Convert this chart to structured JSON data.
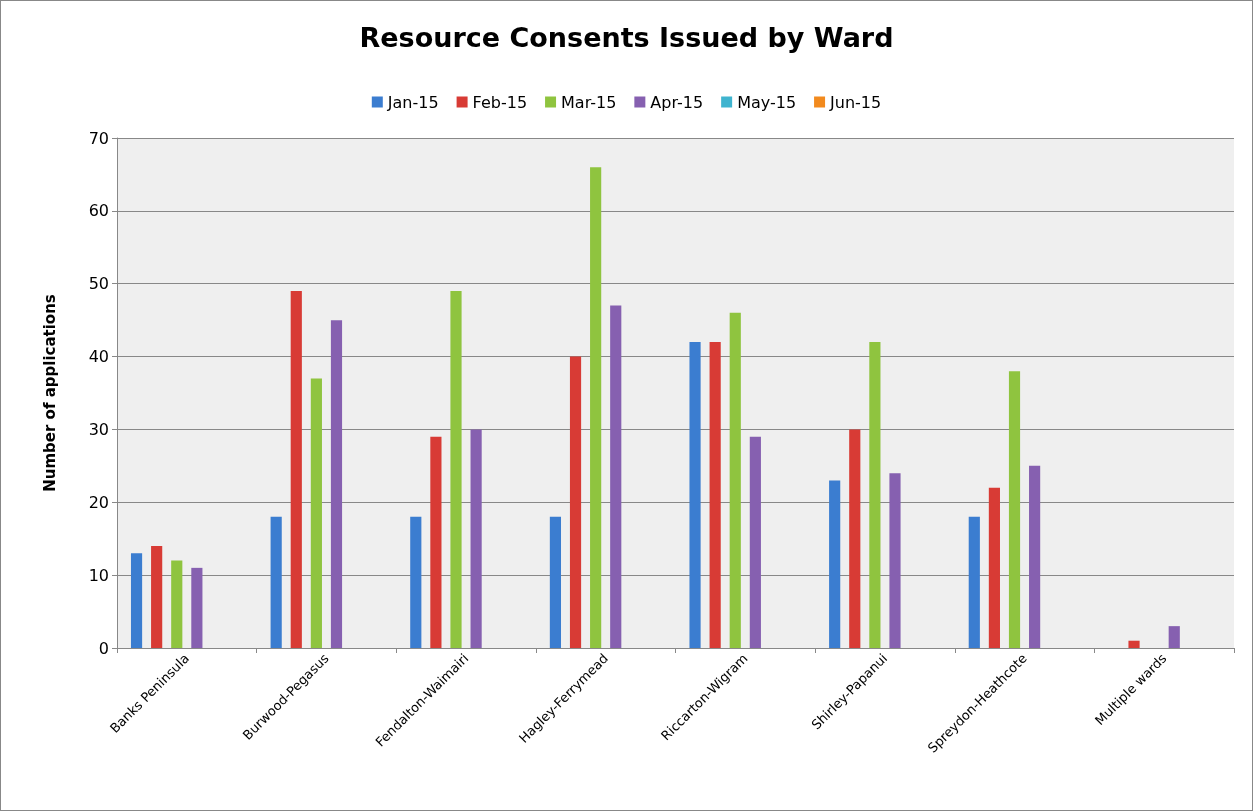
{
  "chart_data": {
    "type": "bar",
    "title": "Resource Consents Issued by Ward",
    "ylabel": "Number of applications",
    "categories": [
      "Banks Peninsula",
      "Burwood-Pegasus",
      "Fendalton-Waimairi",
      "Hagley-Ferrymead",
      "Riccarton-Wigram",
      "Shirley-Papanui",
      "Spreydon-Heathcote",
      "Multiple wards"
    ],
    "series": [
      {
        "name": "Jan-15",
        "color": "#3b7dd0",
        "values": [
          13,
          18,
          18,
          18,
          42,
          23,
          18,
          null
        ]
      },
      {
        "name": "Feb-15",
        "color": "#d83b35",
        "values": [
          14,
          49,
          29,
          40,
          42,
          30,
          22,
          1
        ]
      },
      {
        "name": "Mar-15",
        "color": "#8fc43f",
        "values": [
          12,
          37,
          49,
          66,
          46,
          42,
          38,
          null
        ]
      },
      {
        "name": "Apr-15",
        "color": "#8660b0",
        "values": [
          11,
          45,
          30,
          47,
          29,
          24,
          25,
          3
        ]
      },
      {
        "name": "May-15",
        "color": "#3fb4cf",
        "values": [
          null,
          null,
          null,
          null,
          null,
          null,
          null,
          null
        ]
      },
      {
        "name": "Jun-15",
        "color": "#f28a1e",
        "values": [
          null,
          null,
          null,
          null,
          null,
          null,
          null,
          null
        ]
      }
    ],
    "ylim": [
      0,
      70
    ],
    "yticks": [
      0,
      10,
      20,
      30,
      40,
      50,
      60,
      70
    ],
    "grid": "y",
    "legend": "top"
  }
}
